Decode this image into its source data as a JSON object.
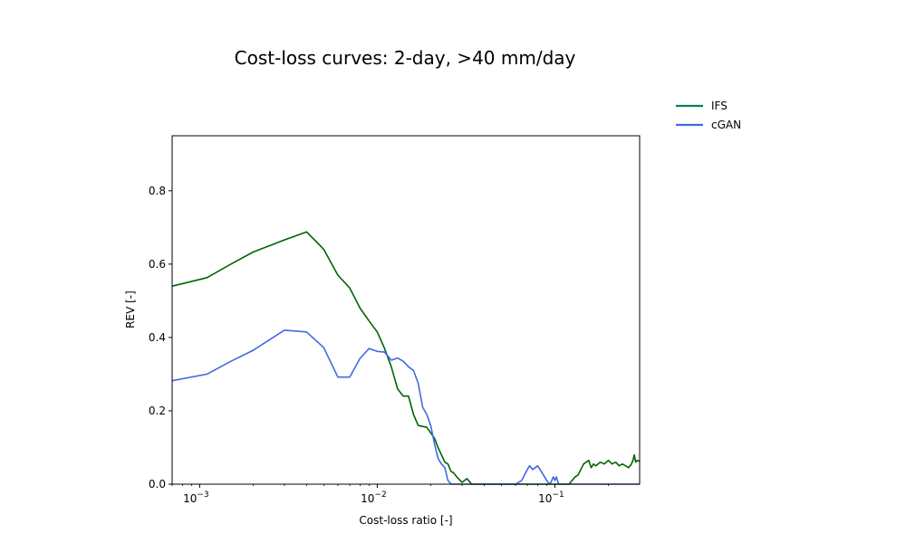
{
  "chart_data": {
    "type": "line",
    "title": "Cost-loss curves: 2-day, >40 mm/day",
    "xlabel": "Cost-loss ratio [-]",
    "ylabel": "REV [-]",
    "xscale": "log",
    "xlim": [
      0.0007,
      0.3
    ],
    "ylim": [
      0.0,
      0.95
    ],
    "xticks": [
      0.001,
      0.01,
      0.1
    ],
    "xtick_labels": [
      {
        "base": "10",
        "exp": "−3"
      },
      {
        "base": "10",
        "exp": "−2"
      },
      {
        "base": "10",
        "exp": "−1"
      }
    ],
    "yticks": [
      0.0,
      0.2,
      0.4,
      0.6,
      0.8
    ],
    "ytick_labels": [
      "0.0",
      "0.2",
      "0.4",
      "0.6",
      "0.8"
    ],
    "grid": false,
    "legend": {
      "placement": "outside-top-right"
    },
    "series": [
      {
        "name": "IFS",
        "color": "#006400",
        "legend_color": "#008060",
        "x": [
          0.0007,
          0.0011,
          0.0015,
          0.002,
          0.003,
          0.004,
          0.005,
          0.006,
          0.007,
          0.008,
          0.009,
          0.01,
          0.011,
          0.012,
          0.013,
          0.014,
          0.015,
          0.016,
          0.017,
          0.019,
          0.021,
          0.022,
          0.024,
          0.025,
          0.026,
          0.027,
          0.028,
          0.03,
          0.032,
          0.034,
          0.035,
          0.04,
          0.05,
          0.06,
          0.08,
          0.1,
          0.12,
          0.125,
          0.13,
          0.135,
          0.14,
          0.145,
          0.15,
          0.155,
          0.16,
          0.165,
          0.17,
          0.18,
          0.19,
          0.2,
          0.21,
          0.22,
          0.23,
          0.24,
          0.25,
          0.26,
          0.27,
          0.275,
          0.28,
          0.285,
          0.29,
          0.3
        ],
        "y": [
          0.54,
          0.563,
          0.6,
          0.633,
          0.666,
          0.688,
          0.64,
          0.57,
          0.535,
          0.48,
          0.445,
          0.415,
          0.37,
          0.32,
          0.26,
          0.24,
          0.24,
          0.19,
          0.16,
          0.155,
          0.125,
          0.1,
          0.06,
          0.055,
          0.035,
          0.03,
          0.02,
          0.005,
          0.015,
          0.0,
          0.0,
          0.0,
          0.0,
          0.0,
          0.0,
          0.0,
          0.0,
          0.01,
          0.02,
          0.025,
          0.04,
          0.055,
          0.06,
          0.065,
          0.045,
          0.055,
          0.05,
          0.06,
          0.055,
          0.065,
          0.055,
          0.06,
          0.05,
          0.055,
          0.05,
          0.045,
          0.055,
          0.065,
          0.08,
          0.06,
          0.065,
          0.062
        ]
      },
      {
        "name": "cGAN",
        "color": "#4169e1",
        "legend_color": "#4169e1",
        "x": [
          0.0007,
          0.0011,
          0.0015,
          0.002,
          0.003,
          0.004,
          0.005,
          0.006,
          0.007,
          0.008,
          0.009,
          0.01,
          0.011,
          0.012,
          0.013,
          0.014,
          0.015,
          0.016,
          0.017,
          0.018,
          0.019,
          0.02,
          0.021,
          0.022,
          0.023,
          0.024,
          0.025,
          0.026,
          0.027,
          0.028,
          0.03,
          0.04,
          0.05,
          0.06,
          0.065,
          0.07,
          0.072,
          0.075,
          0.08,
          0.085,
          0.09,
          0.093,
          0.095,
          0.098,
          0.1,
          0.102,
          0.105,
          0.11,
          0.115,
          0.3
        ],
        "y": [
          0.282,
          0.3,
          0.335,
          0.365,
          0.42,
          0.415,
          0.372,
          0.292,
          0.292,
          0.343,
          0.37,
          0.362,
          0.36,
          0.338,
          0.344,
          0.335,
          0.32,
          0.31,
          0.275,
          0.21,
          0.19,
          0.16,
          0.11,
          0.07,
          0.055,
          0.045,
          0.01,
          0.0,
          0.0,
          0.0,
          0.0,
          0.0,
          0.0,
          0.0,
          0.01,
          0.04,
          0.05,
          0.04,
          0.05,
          0.03,
          0.01,
          0.0,
          0.005,
          0.02,
          0.01,
          0.02,
          0.0,
          0.0,
          0.0,
          0.0
        ]
      }
    ]
  }
}
